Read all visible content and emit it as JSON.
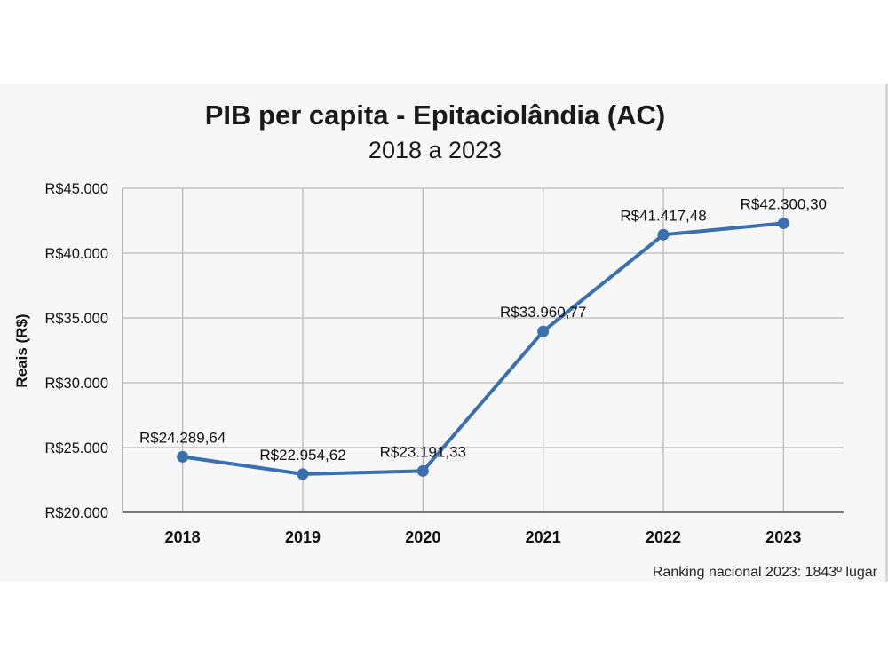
{
  "chart_data": {
    "type": "line",
    "title": "PIB per capita - Epitaciolândia (AC)",
    "subtitle": "2018 a 2023",
    "xlabel": "",
    "ylabel": "Reais (R$)",
    "categories": [
      "2018",
      "2019",
      "2020",
      "2021",
      "2022",
      "2023"
    ],
    "series": [
      {
        "name": "PIB per capita",
        "values": [
          24289.64,
          22954.62,
          23191.33,
          33960.77,
          41417.48,
          42300.3
        ],
        "labels": [
          "R$24.289,64",
          "R$22.954,62",
          "R$23.191,33",
          "R$33.960,77",
          "R$41.417,48",
          "R$42.300,30"
        ]
      }
    ],
    "ylim": [
      20000,
      45000
    ],
    "yticks": [
      20000,
      25000,
      30000,
      35000,
      40000,
      45000
    ],
    "ytick_labels": [
      "R$20.000",
      "R$25.000",
      "R$30.000",
      "R$35.000",
      "R$40.000",
      "R$45.000"
    ],
    "grid": true,
    "legend": "none",
    "color": "#3a70ad",
    "footnote": "Ranking nacional 2023: 1843º lugar"
  }
}
